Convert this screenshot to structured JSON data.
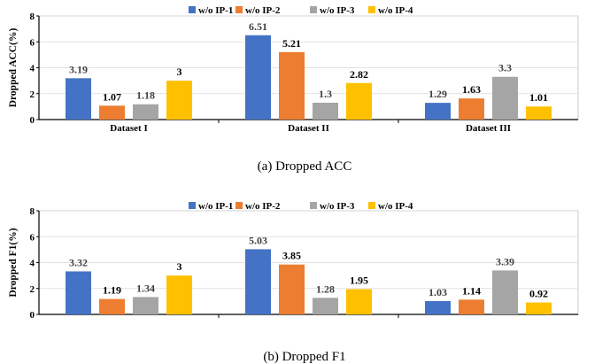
{
  "chart_data": [
    {
      "type": "bar",
      "ylabel": "Dropped ACC(%)",
      "caption": "(a)  Dropped ACC",
      "categories": [
        "Dataset I",
        "Dataset II",
        "Dataset III"
      ],
      "ylim": [
        0,
        8
      ],
      "yticks": [
        0,
        2,
        4,
        6,
        8
      ],
      "legend_position": "top",
      "series": [
        {
          "name": "w/o IP-1",
          "color": "#4472C4",
          "values": [
            3.19,
            6.51,
            1.29
          ]
        },
        {
          "name": "w/o IP-2",
          "color": "#ED7D31",
          "values": [
            1.07,
            5.21,
            1.63
          ]
        },
        {
          "name": "w/o IP-3",
          "color": "#A5A5A5",
          "values": [
            1.18,
            1.3,
            3.3
          ]
        },
        {
          "name": "w/o IP-4",
          "color": "#FFC000",
          "values": [
            3,
            2.82,
            1.01
          ]
        }
      ],
      "value_labels": [
        [
          "3.19",
          "1.07",
          "1.18",
          "3"
        ],
        [
          "6.51",
          "5.21",
          "1.3",
          "2.82"
        ],
        [
          "1.29",
          "1.63",
          "3.3",
          "1.01"
        ]
      ]
    },
    {
      "type": "bar",
      "ylabel": "Dropped F1(%)",
      "caption": "(b)  Dropped F1",
      "categories": [
        "",
        "",
        ""
      ],
      "ylim": [
        0,
        8
      ],
      "yticks": [
        0,
        2,
        4,
        6,
        8
      ],
      "legend_position": "top",
      "series": [
        {
          "name": "w/o IP-1",
          "color": "#4472C4",
          "values": [
            3.32,
            5.03,
            1.03
          ]
        },
        {
          "name": "w/o IP-2",
          "color": "#ED7D31",
          "values": [
            1.19,
            3.85,
            1.14
          ]
        },
        {
          "name": "w/o IP-3",
          "color": "#A5A5A5",
          "values": [
            1.34,
            1.28,
            3.39
          ]
        },
        {
          "name": "w/o IP-4",
          "color": "#FFC000",
          "values": [
            3,
            1.95,
            0.92
          ]
        }
      ],
      "value_labels": [
        [
          "3.32",
          "1.19",
          "1.34",
          "3"
        ],
        [
          "5.03",
          "3.85",
          "1.28",
          "1.95"
        ],
        [
          "1.03",
          "1.14",
          "3.39",
          "0.92"
        ]
      ]
    }
  ]
}
